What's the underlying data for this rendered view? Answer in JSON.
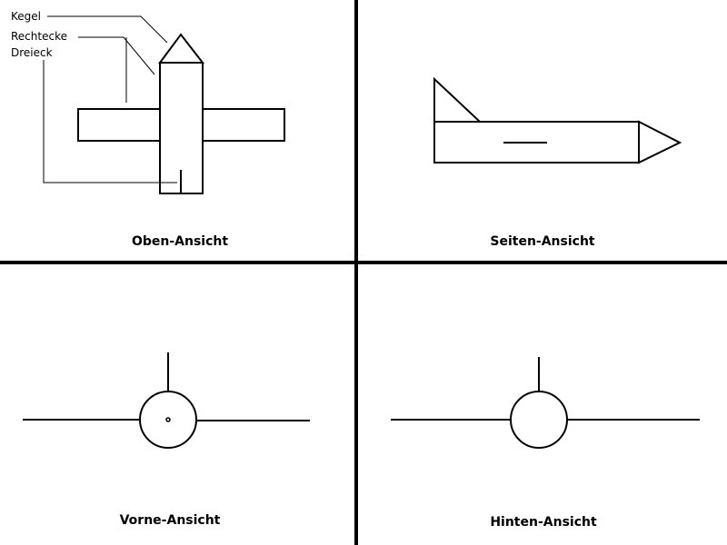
{
  "legend": {
    "cone": "Kegel",
    "rectangles": "Rechtecke",
    "triangle": "Dreieck"
  },
  "views": {
    "top": "Oben-Ansicht",
    "side": "Seiten-Ansicht",
    "front": "Vorne-Ansicht",
    "rear": "Hinten-Ansicht"
  }
}
